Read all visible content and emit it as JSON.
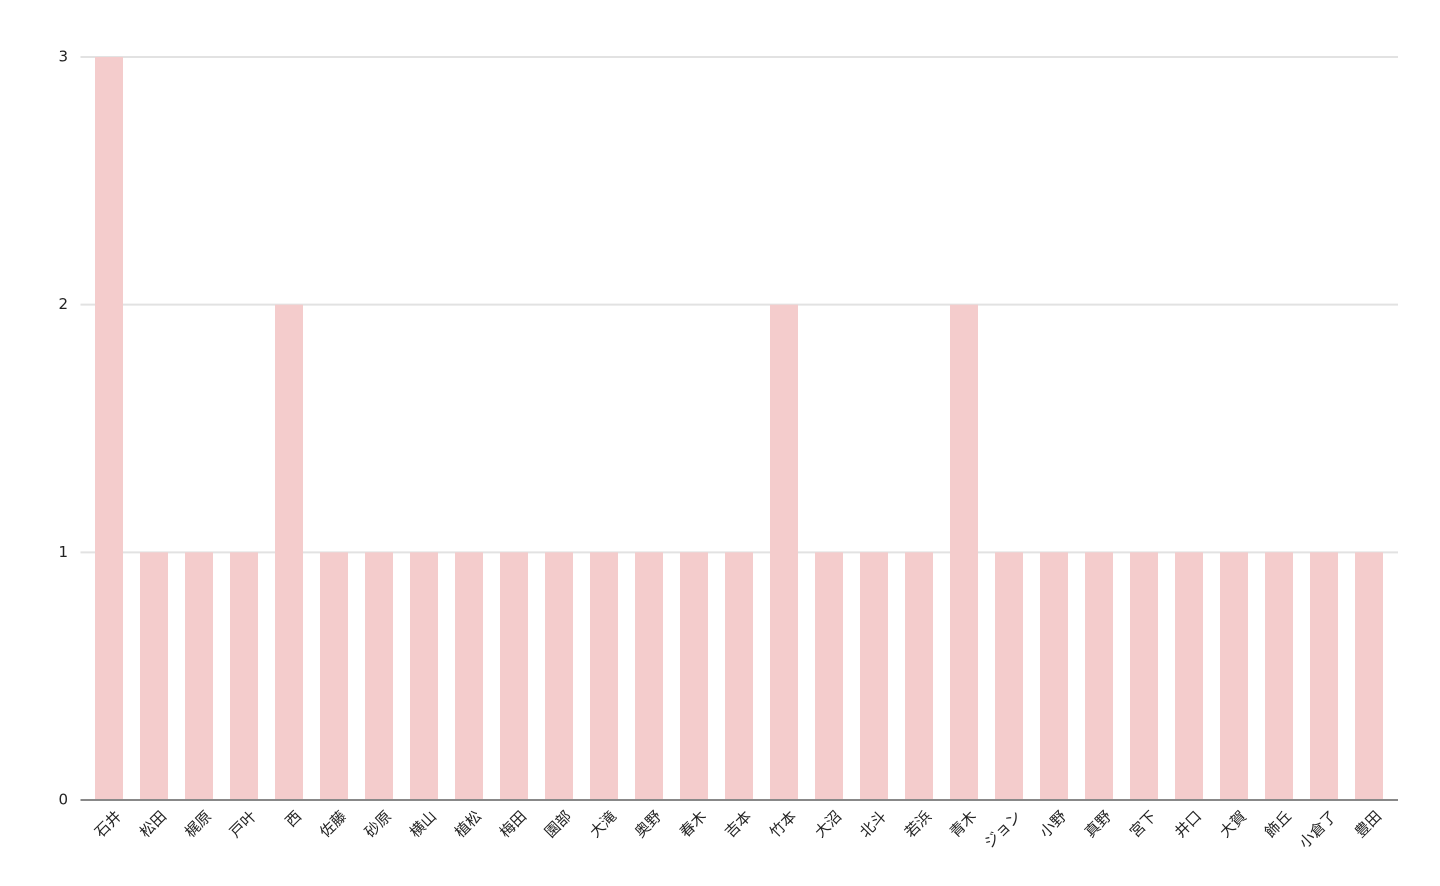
{
  "chart_data": {
    "type": "bar",
    "categories": [
      "石井",
      "松田",
      "梶原",
      "戸叶",
      "西",
      "佐藤",
      "砂原",
      "横山",
      "植松",
      "梅田",
      "園部",
      "大滝",
      "奥野",
      "春木",
      "吉本",
      "竹本",
      "大沼",
      "北斗",
      "若浜",
      "青木",
      "ジョン",
      "小野",
      "真野",
      "宮下",
      "井口",
      "大賀",
      "飾丘",
      "小倉了",
      "豊田"
    ],
    "values": [
      3,
      1,
      1,
      1,
      2,
      1,
      1,
      1,
      1,
      1,
      1,
      1,
      1,
      1,
      1,
      2,
      1,
      1,
      1,
      2,
      1,
      1,
      1,
      1,
      1,
      1,
      1,
      1,
      1
    ],
    "color": "#f4cccc",
    "ylim": [
      0,
      3
    ],
    "yticks": [
      0,
      1,
      2,
      3
    ],
    "grid": true
  }
}
